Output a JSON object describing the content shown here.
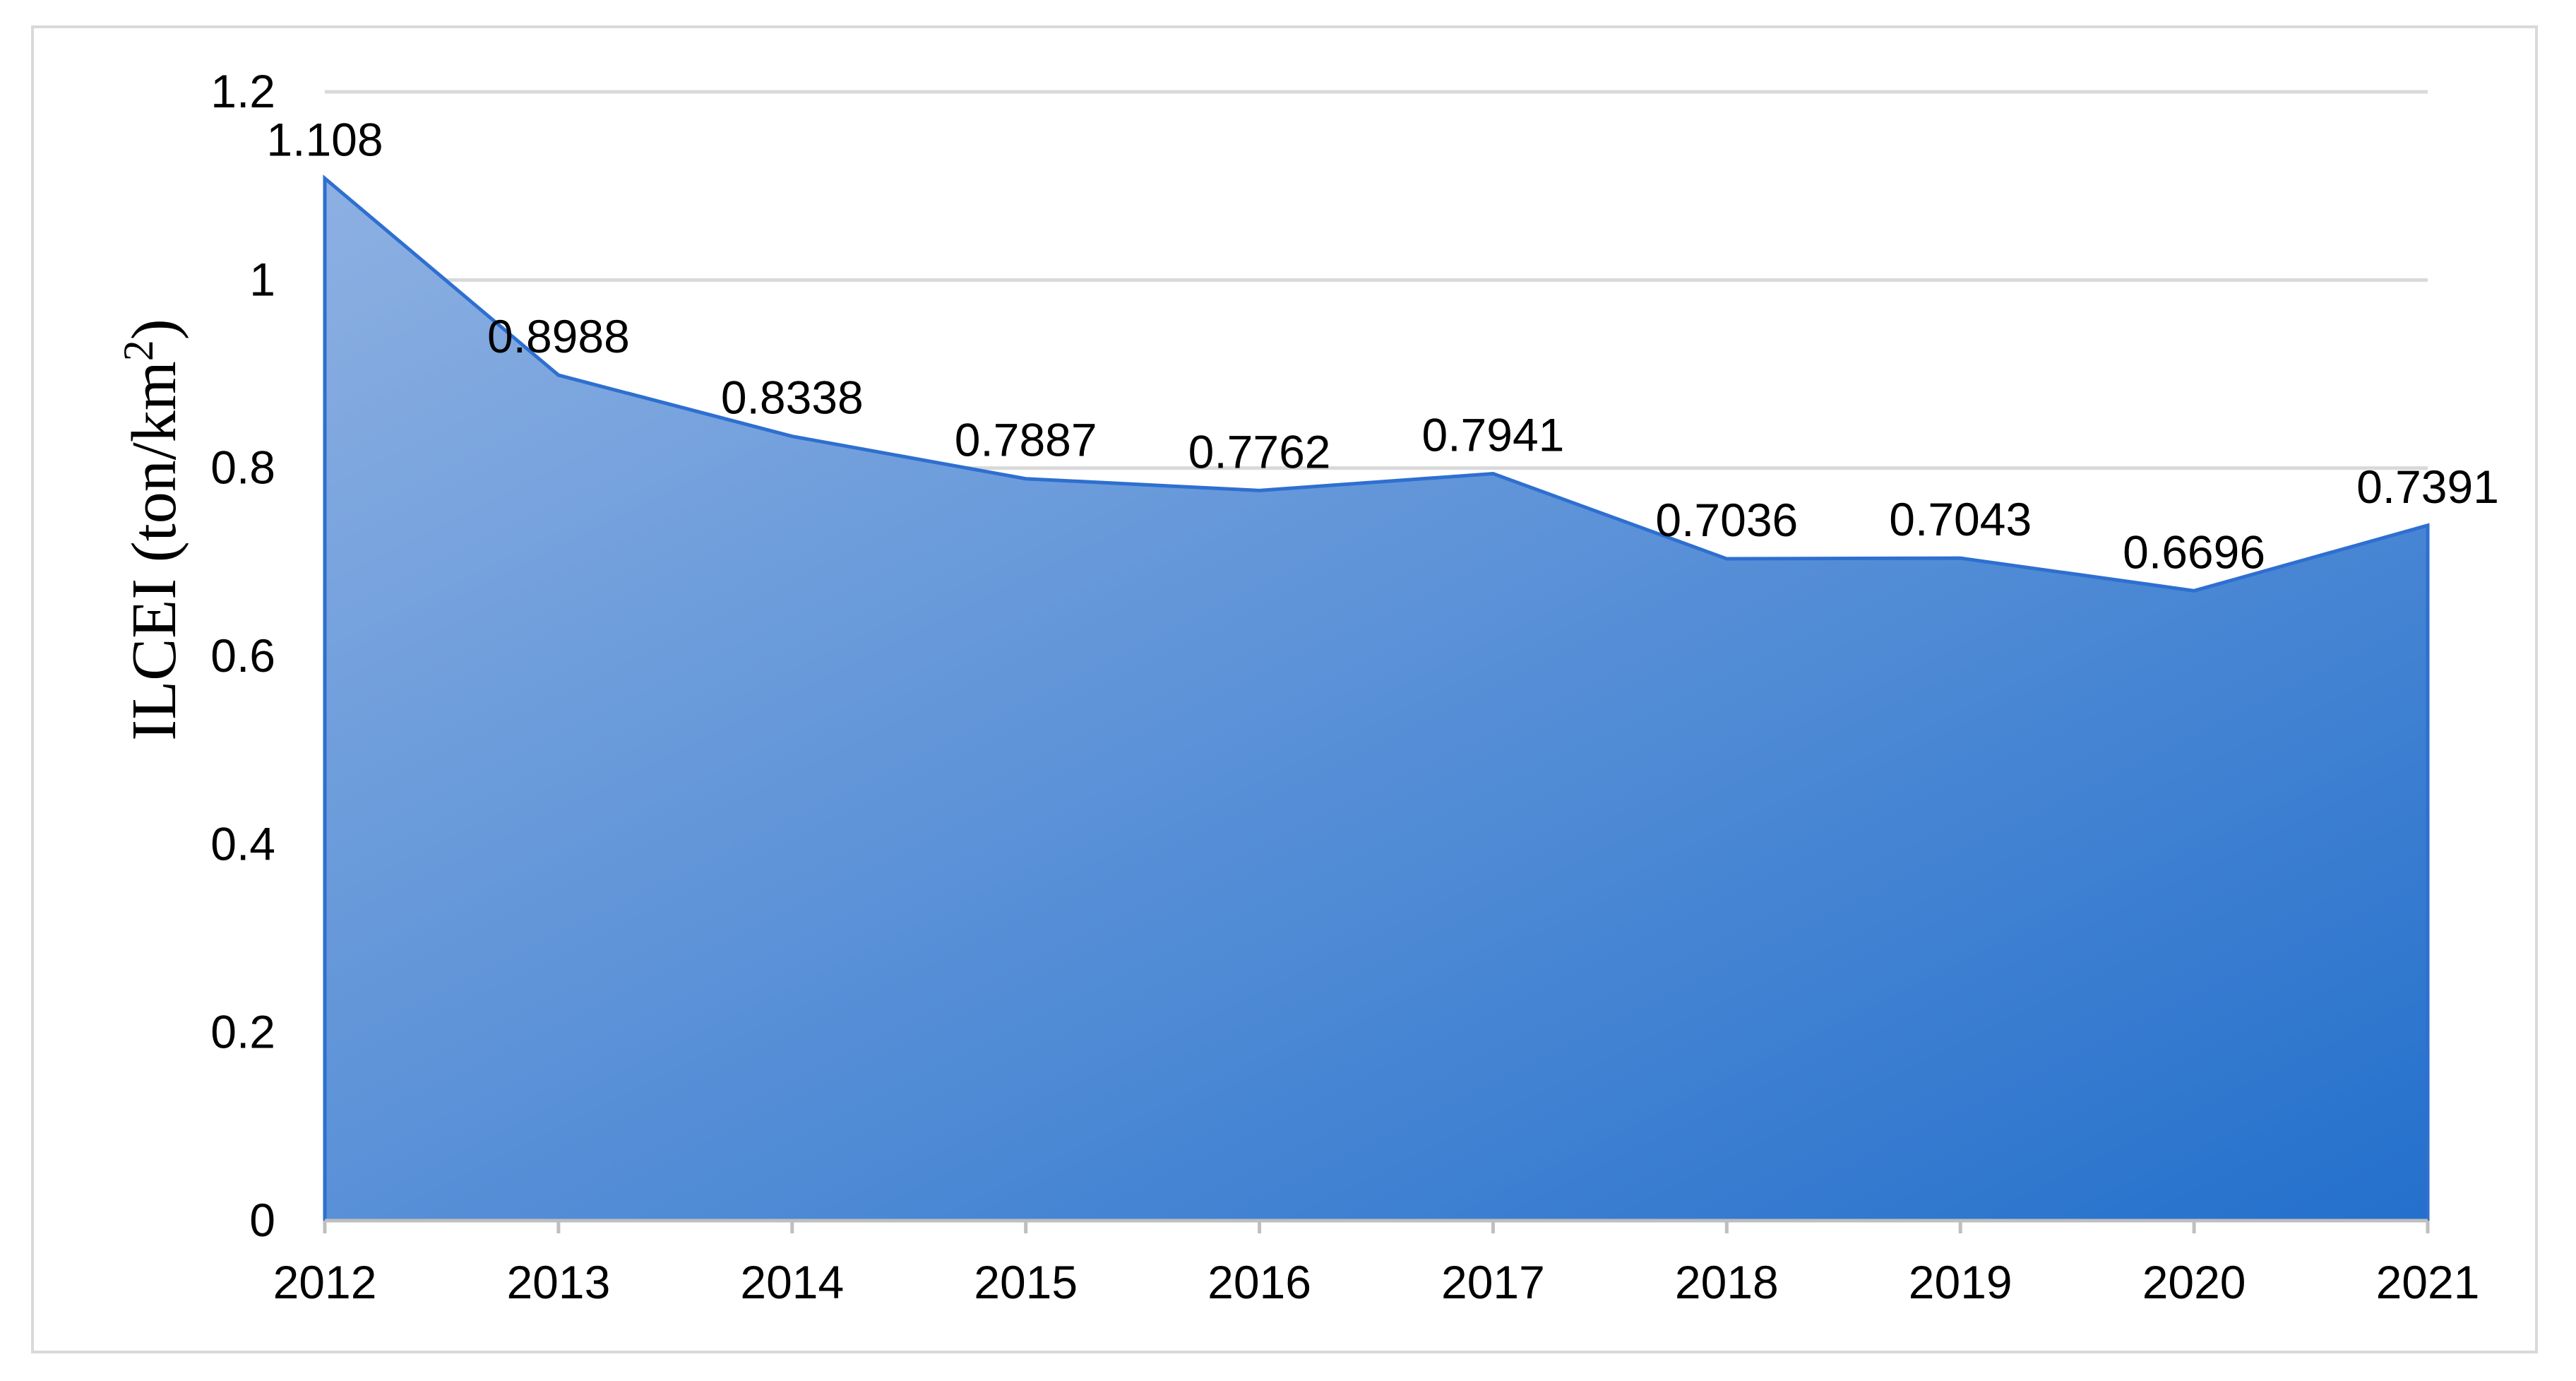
{
  "chart_data": {
    "type": "area",
    "title": "",
    "xlabel": "",
    "ylabel": "ILCEI (ton/km",
    "ylabel_superscript": "2",
    "ylabel_suffix": ")",
    "categories": [
      "2012",
      "2013",
      "2014",
      "2015",
      "2016",
      "2017",
      "2018",
      "2019",
      "2020",
      "2021"
    ],
    "values": [
      1.108,
      0.8988,
      0.8338,
      0.7887,
      0.7762,
      0.7941,
      0.7036,
      0.7043,
      0.6696,
      0.7391
    ],
    "data_labels": [
      "1.108",
      "0.8988",
      "0.8338",
      "0.7887",
      "0.7762",
      "0.7941",
      "0.7036",
      "0.7043",
      "0.6696",
      "0.7391"
    ],
    "ylim": [
      0,
      1.2
    ],
    "yticks": [
      "0",
      "0.2",
      "0.4",
      "0.6",
      "0.8",
      "1",
      "1.2"
    ],
    "grid": true,
    "legend": "none",
    "colors": {
      "fill_start": "#8db0e2",
      "fill_end": "#2470cc",
      "line": "#2e6fd0"
    }
  }
}
